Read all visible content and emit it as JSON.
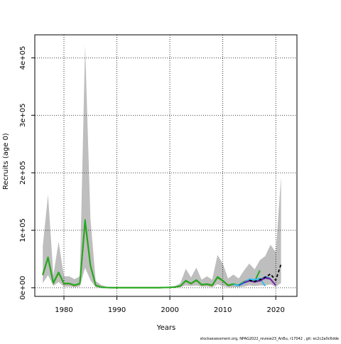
{
  "chart_data": {
    "type": "line",
    "xlabel": "Years",
    "ylabel": "Recruits (age 0)",
    "xlim": [
      1974.5,
      2024
    ],
    "ylim": [
      -15000,
      440000
    ],
    "grid": true,
    "grid_style": "dotted",
    "x_ticks": [
      1980,
      1990,
      2000,
      2010,
      2020
    ],
    "x_tick_labels": [
      "1980",
      "1990",
      "2000",
      "2010",
      "2020"
    ],
    "y_ticks": [
      0,
      100000,
      200000,
      300000,
      400000
    ],
    "y_tick_labels": [
      "0e+00",
      "1e+05",
      "2e+05",
      "3e+05",
      "4e+05"
    ],
    "footnote": "stockassessment.org, NPAG2022_review23_AnBu, r17042 , git: ec2c2a0c6dde",
    "confidence_band": {
      "color": "#bebebe",
      "x": [
        1976,
        1977,
        1978,
        1979,
        1980,
        1981,
        1982,
        1983,
        1984,
        1985,
        1986,
        1987,
        1988,
        1989,
        1990,
        1991,
        1992,
        1993,
        1994,
        1995,
        1996,
        1997,
        1998,
        1999,
        2000,
        2001,
        2002,
        2003,
        2004,
        2005,
        2006,
        2007,
        2008,
        2009,
        2010,
        2011,
        2012,
        2013,
        2014,
        2015,
        2016,
        2017,
        2018,
        2019,
        2020,
        2021
      ],
      "lower": [
        8000,
        22000,
        3000,
        10000,
        2000,
        2000,
        1000,
        2000,
        35000,
        13000,
        1000,
        300,
        100,
        50,
        0,
        0,
        0,
        0,
        0,
        0,
        0,
        0,
        0,
        100,
        200,
        500,
        1000,
        4000,
        3000,
        4000,
        2000,
        2000,
        1000,
        6000,
        3000,
        1000,
        1000,
        1000,
        2000,
        4000,
        3000,
        4000,
        4000,
        6000,
        2000,
        8000
      ],
      "upper": [
        72000,
        162000,
        22000,
        80000,
        20000,
        20000,
        15000,
        20000,
        422000,
        120000,
        12000,
        5000,
        2000,
        800,
        500,
        400,
        300,
        300,
        300,
        300,
        400,
        600,
        800,
        1000,
        1500,
        3000,
        8000,
        33000,
        18000,
        35000,
        14000,
        20000,
        14000,
        57000,
        42000,
        16000,
        23000,
        16000,
        30000,
        42000,
        32000,
        48000,
        55000,
        75000,
        62000,
        193000
      ]
    },
    "series": [
      {
        "color": "#7a7a00",
        "x": [
          1976,
          1977,
          1978,
          1979,
          1980,
          1981,
          1982,
          1983,
          1984,
          1985,
          1986,
          1987,
          1988,
          1989,
          1990,
          1991,
          1992,
          1993,
          1994,
          1995,
          1996,
          1997,
          1998,
          1999,
          2000,
          2001,
          2002,
          2003,
          2004,
          2005,
          2006,
          2007,
          2008,
          2009,
          2010,
          2011,
          2012,
          2013,
          2014,
          2015,
          2016
        ],
        "values": [
          22000,
          52000,
          8000,
          26000,
          7000,
          7000,
          4000,
          7000,
          115000,
          38000,
          4000,
          1000,
          400,
          200,
          100,
          80,
          60,
          60,
          60,
          60,
          80,
          150,
          250,
          400,
          600,
          1200,
          3000,
          12000,
          7000,
          13000,
          5000,
          6000,
          4000,
          18000,
          12000,
          4000,
          6000,
          4000,
          10000,
          13000,
          10000
        ]
      },
      {
        "color": "#22aa22",
        "x": [
          1976,
          1977,
          1978,
          1979,
          1980,
          1981,
          1982,
          1983,
          1984,
          1985,
          1986,
          1987,
          1988,
          1989,
          1990,
          1991,
          1992,
          1993,
          1994,
          1995,
          1996,
          1997,
          1998,
          1999,
          2000,
          2001,
          2002,
          2003,
          2004,
          2005,
          2006,
          2007,
          2008,
          2009,
          2010,
          2011,
          2012,
          2013,
          2014,
          2015,
          2016,
          2017
        ],
        "values": [
          23000,
          53000,
          8500,
          27000,
          7500,
          7500,
          4500,
          7500,
          118000,
          39000,
          4500,
          1100,
          450,
          220,
          110,
          90,
          70,
          70,
          70,
          70,
          90,
          160,
          260,
          420,
          650,
          1300,
          3200,
          12500,
          7500,
          13500,
          5500,
          6500,
          4500,
          19000,
          12500,
          4500,
          6500,
          4500,
          10500,
          14000,
          11000,
          30000
        ]
      },
      {
        "color": "#33bbee",
        "x": [
          2012,
          2013,
          2014,
          2015,
          2016,
          2017,
          2018
        ],
        "values": [
          5500,
          4000,
          9000,
          15000,
          14000,
          16000,
          3000
        ]
      },
      {
        "color": "#2266cc",
        "x": [
          2013,
          2014,
          2015,
          2016,
          2017,
          2018,
          2019
        ],
        "values": [
          4000,
          8500,
          12000,
          11000,
          13000,
          19000,
          16000
        ]
      },
      {
        "color": "#7722aa",
        "x": [
          2014,
          2015,
          2016,
          2017,
          2018,
          2019,
          2020
        ],
        "values": [
          9000,
          12000,
          10000,
          12000,
          17000,
          15000,
          4000
        ]
      },
      {
        "color": "#000000",
        "dashed": true,
        "x": [
          2015,
          2016,
          2017,
          2018,
          2019,
          2020,
          2021
        ],
        "values": [
          13000,
          11000,
          14000,
          18000,
          24000,
          13000,
          41000
        ]
      }
    ]
  }
}
